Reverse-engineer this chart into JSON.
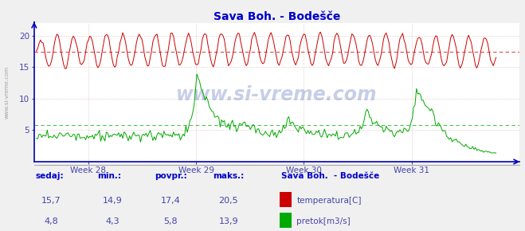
{
  "title": "Sava Boh. - Bodešče",
  "title_color": "#0000cc",
  "bg_color": "#f0f0f0",
  "plot_bg_color": "#ffffff",
  "grid_color": "#cccccc",
  "grid_color2": "#ddaaaa",
  "axis_color": "#0000bb",
  "tick_color": "#4444aa",
  "temp_color": "#cc0000",
  "flow_color": "#00aa00",
  "temp_avg": 17.4,
  "flow_avg": 5.8,
  "temp_min": 14.9,
  "temp_max": 20.5,
  "temp_current": 15.7,
  "flow_min": 4.3,
  "flow_max": 13.9,
  "flow_current": 4.8,
  "ylim": [
    0,
    22
  ],
  "yticks": [
    5,
    10,
    15,
    20
  ],
  "xlim": [
    27.5,
    32.0
  ],
  "week_ticks": [
    28,
    29,
    30,
    31
  ],
  "week_labels": [
    "Week 28",
    "Week 29",
    "Week 30",
    "Week 31"
  ],
  "watermark": "www.si-vreme.com",
  "watermark_color": "#3355aa",
  "side_watermark_color": "#999999",
  "footer_title": "Sava Boh.  - Bodešče",
  "footer_color": "#0000cc",
  "legend_temp": "temperatura[C]",
  "legend_flow": "pretok[m3/s]",
  "label_sedaj": "sedaj:",
  "label_min": "min.:",
  "label_povpr": "povpr.:",
  "label_maks": "maks.:"
}
